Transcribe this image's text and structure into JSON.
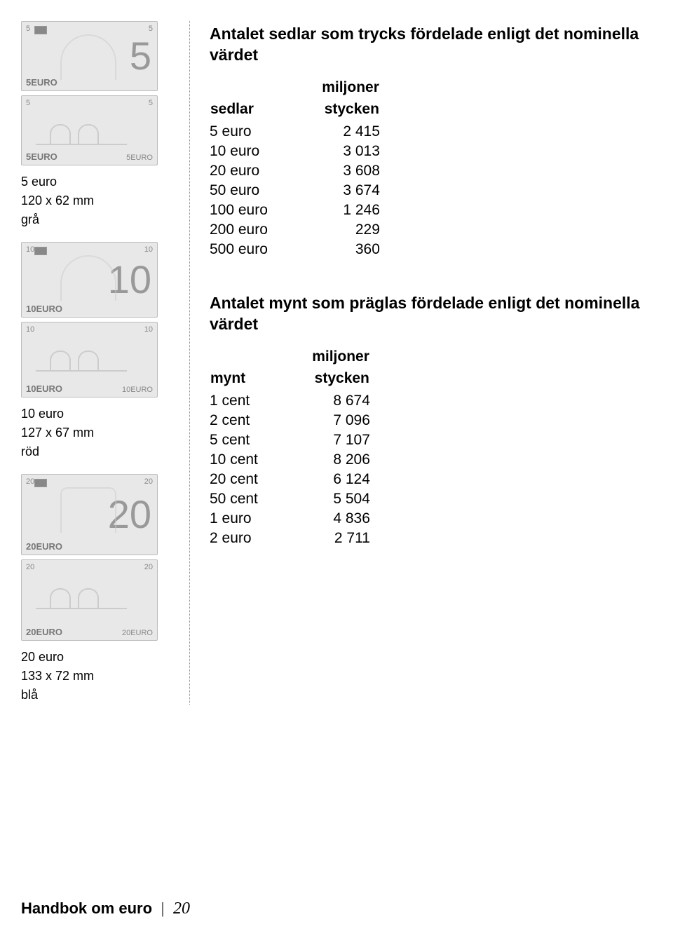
{
  "notes": {
    "n5": {
      "label": "5 euro",
      "dims": "120 x 62 mm",
      "color": "grå",
      "num": "5",
      "euro": "5EURO"
    },
    "n10": {
      "label": "10 euro",
      "dims": "127 x 67 mm",
      "color": "röd",
      "num": "10",
      "euro": "10EURO"
    },
    "n20": {
      "label": "20 euro",
      "dims": "133 x 72 mm",
      "color": "blå",
      "num": "20",
      "euro": "20EURO"
    }
  },
  "sedlar": {
    "title": "Antalet sedlar som trycks fördelade enligt det nominella värdet",
    "col1": "sedlar",
    "super": "miljoner",
    "col2": "stycken",
    "rows": [
      {
        "k": "5 euro",
        "v": "2 415"
      },
      {
        "k": "10 euro",
        "v": "3 013"
      },
      {
        "k": "20 euro",
        "v": "3 608"
      },
      {
        "k": "50 euro",
        "v": "3 674"
      },
      {
        "k": "100 euro",
        "v": "1 246"
      },
      {
        "k": "200 euro",
        "v": "229"
      },
      {
        "k": "500 euro",
        "v": "360"
      }
    ]
  },
  "mynt": {
    "title": "Antalet mynt som präglas fördelade enligt det nominella värdet",
    "col1": "mynt",
    "super": "miljoner",
    "col2": "stycken",
    "rows": [
      {
        "k": "1 cent",
        "v": "8 674"
      },
      {
        "k": "2 cent",
        "v": "7 096"
      },
      {
        "k": "5 cent",
        "v": "7 107"
      },
      {
        "k": "10 cent",
        "v": "8 206"
      },
      {
        "k": "20 cent",
        "v": "6 124"
      },
      {
        "k": "50 cent",
        "v": "5 504"
      },
      {
        "k": "1 euro",
        "v": "4 836"
      },
      {
        "k": "2 euro",
        "v": "2 711"
      }
    ]
  },
  "footer": {
    "title": "Handbok om euro",
    "sep": "|",
    "page": "20"
  }
}
